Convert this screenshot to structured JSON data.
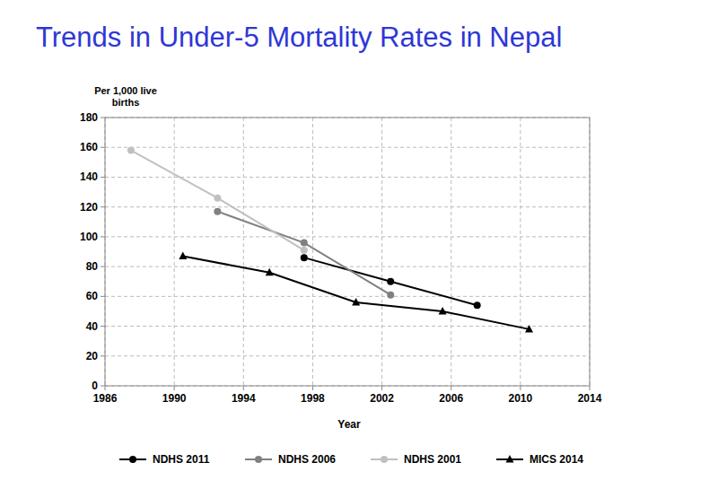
{
  "chart_data": {
    "type": "line",
    "title": "Trends in Under-5 Mortality Rates in Nepal",
    "y_label": "Per 1,000 live births",
    "x_label": "Year",
    "xlim": [
      1986,
      2014
    ],
    "xticks": [
      1986,
      1990,
      1994,
      1998,
      2002,
      2006,
      2010,
      2014
    ],
    "ylim": [
      0,
      180
    ],
    "yticks": [
      0,
      20,
      40,
      60,
      80,
      100,
      120,
      140,
      160,
      180
    ],
    "grid": true,
    "legend": "bottom",
    "series": [
      {
        "name": "NDHS 2011",
        "color": "#000000",
        "marker": "circle",
        "x": [
          1997.5,
          2002.5,
          2007.5
        ],
        "values": [
          86,
          70,
          54
        ]
      },
      {
        "name": "NDHS 2006",
        "color": "#808080",
        "marker": "circle",
        "x": [
          1992.5,
          1997.5,
          2002.5
        ],
        "values": [
          117,
          96,
          61
        ]
      },
      {
        "name": "NDHS 2001",
        "color": "#c0c0c0",
        "marker": "circle",
        "x": [
          1987.5,
          1992.5,
          1997.5
        ],
        "values": [
          158,
          126,
          91
        ]
      },
      {
        "name": "MICS 2014",
        "color": "#000000",
        "marker": "triangle",
        "x": [
          1990.5,
          1995.5,
          2000.5,
          2005.5,
          2010.5
        ],
        "values": [
          87,
          76,
          56,
          50,
          38
        ]
      }
    ]
  }
}
